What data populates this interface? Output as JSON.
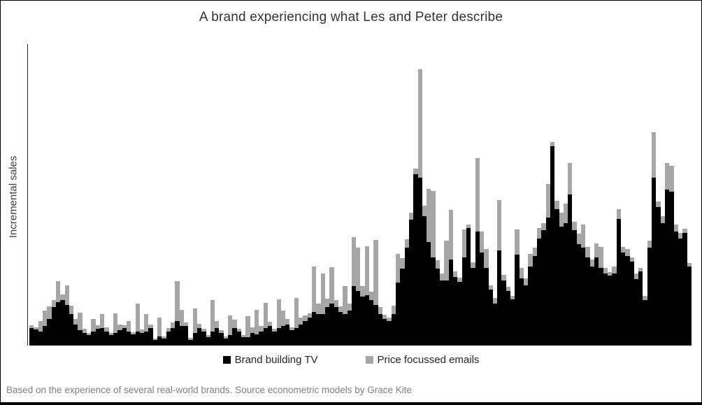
{
  "chart": {
    "title": "A brand experiencing what Les and Peter describe",
    "ylabel": "Incremental sales",
    "legend": {
      "tv": {
        "label": "Brand building TV",
        "color": "#000000"
      },
      "emails": {
        "label": "Price focussed emails",
        "color": "#a6a6a6"
      }
    },
    "footer_note": "Based on the experience of several real-world brands. Source econometric models by Grace Kite"
  },
  "chart_data": {
    "type": "bar",
    "stacked": true,
    "title": "A brand experiencing what Les and Peter describe",
    "xlabel": "",
    "ylabel": "Incremental sales",
    "x_axis": "time (150 consecutive periods, unlabeled)",
    "y_axis_ticks": "none (unlabeled axis)",
    "ylim": [
      0,
      431
    ],
    "grid": false,
    "legend_position": "bottom",
    "series": [
      {
        "name": "Brand building TV",
        "color": "#000000",
        "values": [
          25,
          23,
          20,
          28,
          38,
          55,
          62,
          65,
          58,
          45,
          30,
          22,
          18,
          15,
          20,
          24,
          25,
          20,
          15,
          18,
          22,
          25,
          20,
          16,
          20,
          18,
          20,
          25,
          8,
          13,
          10,
          20,
          25,
          35,
          28,
          28,
          8,
          18,
          25,
          20,
          12,
          20,
          25,
          18,
          10,
          15,
          25,
          20,
          12,
          12,
          18,
          16,
          20,
          25,
          28,
          20,
          25,
          28,
          30,
          22,
          25,
          30,
          35,
          40,
          48,
          45,
          45,
          55,
          60,
          55,
          48,
          45,
          50,
          85,
          78,
          70,
          72,
          65,
          58,
          45,
          38,
          35,
          45,
          90,
          110,
          140,
          180,
          245,
          240,
          185,
          148,
          126,
          110,
          93,
          93,
          123,
          98,
          91,
          126,
          168,
          111,
          163,
          133,
          111,
          80,
          60,
          136,
          93,
          78,
          66,
          130,
          96,
          86,
          113,
          128,
          153,
          165,
          183,
          285,
          195,
          170,
          175,
          216,
          165,
          145,
          140,
          126,
          113,
          126,
          111,
          103,
          100,
          103,
          181,
          133,
          128,
          120,
          95,
          106,
          65,
          140,
          240,
          198,
          175,
          223,
          220,
          163,
          153,
          161,
          113
        ]
      },
      {
        "name": "Price focussed emails",
        "color": "#a6a6a6",
        "values": [
          4,
          3,
          15,
          22,
          18,
          10,
          30,
          8,
          28,
          12,
          8,
          25,
          6,
          3,
          18,
          5,
          20,
          6,
          3,
          28,
          8,
          4,
          15,
          3,
          40,
          5,
          25,
          5,
          2,
          27,
          3,
          5,
          8,
          57,
          23,
          5,
          3,
          35,
          6,
          4,
          3,
          45,
          10,
          4,
          3,
          28,
          12,
          4,
          3,
          30,
          8,
          35,
          8,
          36,
          6,
          4,
          41,
          22,
          8,
          4,
          43,
          10,
          8,
          6,
          65,
          15,
          58,
          12,
          52,
          10,
          8,
          40,
          10,
          70,
          62,
          15,
          70,
          12,
          93,
          10,
          6,
          5,
          12,
          41,
          15,
          12,
          10,
          8,
          155,
          15,
          76,
          95,
          12,
          10,
          57,
          71,
          8,
          6,
          40,
          5,
          8,
          105,
          30,
          27,
          6,
          8,
          72,
          8,
          6,
          5,
          36,
          15,
          10,
          18,
          12,
          15,
          10,
          48,
          6,
          12,
          20,
          28,
          45,
          12,
          15,
          33,
          15,
          10,
          20,
          30,
          8,
          5,
          10,
          14,
          8,
          10,
          6,
          8,
          5,
          6,
          10,
          65,
          8,
          10,
          38,
          37,
          10,
          8,
          6,
          5
        ]
      }
    ]
  }
}
